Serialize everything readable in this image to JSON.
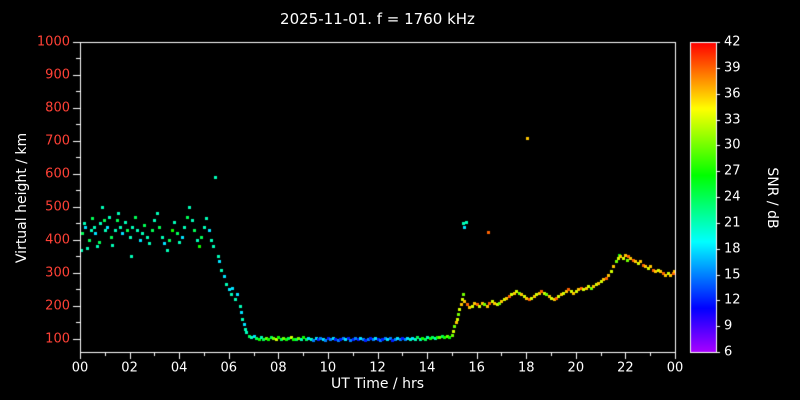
{
  "chart_data": {
    "type": "scatter",
    "title": "2025-11-01. f = 1760 kHz",
    "xlabel": "UT Time / hrs",
    "ylabel": "Virtual height / km",
    "colorbar_label": "SNR / dB",
    "xlim": [
      0,
      24
    ],
    "ylim": [
      60,
      1000
    ],
    "clim": [
      6,
      42
    ],
    "grid": false,
    "legend": "none",
    "colors": {
      "background": "#000000",
      "frame": "#ffffff",
      "title": "#ffffff",
      "x_tick_labels": "#ffffff",
      "y_tick_labels": "#ff4136",
      "colorbar_tick_labels": "#ffffff"
    },
    "x_ticks": {
      "values": [
        0,
        2,
        4,
        6,
        8,
        10,
        12,
        14,
        16,
        18,
        20,
        22,
        24
      ],
      "labels": [
        "00",
        "02",
        "04",
        "06",
        "08",
        "10",
        "12",
        "14",
        "16",
        "18",
        "20",
        "22",
        "00"
      ],
      "minor": [
        1,
        3,
        5,
        7,
        9,
        11,
        13,
        15,
        17,
        19,
        21,
        23
      ]
    },
    "y_ticks": {
      "values": [
        100,
        200,
        300,
        400,
        500,
        600,
        700,
        800,
        900,
        1000
      ],
      "labels": [
        "100",
        "200",
        "300",
        "400",
        "500",
        "600",
        "700",
        "800",
        "900",
        "1000"
      ],
      "minor": [
        150,
        250,
        350,
        450,
        550,
        650,
        750,
        850,
        950
      ]
    },
    "colorbar_ticks": {
      "values": [
        6,
        9,
        12,
        15,
        18,
        21,
        24,
        27,
        30,
        33,
        36,
        39,
        42
      ],
      "labels": [
        "6",
        "9",
        "12",
        "15",
        "18",
        "21",
        "24",
        "27",
        "30",
        "33",
        "36",
        "39",
        "42"
      ]
    },
    "points": [
      [
        0.05,
        370,
        21
      ],
      [
        0.1,
        420,
        24
      ],
      [
        0.15,
        450,
        21
      ],
      [
        0.2,
        440,
        18
      ],
      [
        0.3,
        375,
        21
      ],
      [
        0.35,
        400,
        24
      ],
      [
        0.45,
        430,
        21
      ],
      [
        0.5,
        465,
        24
      ],
      [
        0.55,
        440,
        21
      ],
      [
        0.6,
        420,
        18
      ],
      [
        0.7,
        380,
        21
      ],
      [
        0.75,
        395,
        24
      ],
      [
        0.8,
        450,
        21
      ],
      [
        0.9,
        500,
        21
      ],
      [
        0.95,
        460,
        24
      ],
      [
        1.0,
        430,
        21
      ],
      [
        1.1,
        440,
        18
      ],
      [
        1.15,
        470,
        21
      ],
      [
        1.25,
        410,
        24
      ],
      [
        1.3,
        385,
        21
      ],
      [
        1.4,
        430,
        21
      ],
      [
        1.5,
        460,
        24
      ],
      [
        1.55,
        480,
        21
      ],
      [
        1.6,
        440,
        21
      ],
      [
        1.7,
        420,
        18
      ],
      [
        1.8,
        455,
        21
      ],
      [
        1.9,
        430,
        24
      ],
      [
        2.0,
        410,
        21
      ],
      [
        2.05,
        350,
        21
      ],
      [
        2.1,
        440,
        21
      ],
      [
        2.2,
        470,
        24
      ],
      [
        2.3,
        430,
        21
      ],
      [
        2.4,
        400,
        18
      ],
      [
        2.5,
        420,
        21
      ],
      [
        2.6,
        445,
        24
      ],
      [
        2.7,
        410,
        21
      ],
      [
        2.8,
        390,
        21
      ],
      [
        2.9,
        430,
        24
      ],
      [
        3.0,
        460,
        21
      ],
      [
        3.1,
        480,
        21
      ],
      [
        3.2,
        440,
        24
      ],
      [
        3.3,
        410,
        21
      ],
      [
        3.4,
        390,
        18
      ],
      [
        3.5,
        370,
        21
      ],
      [
        3.6,
        400,
        24
      ],
      [
        3.7,
        430,
        27
      ],
      [
        3.8,
        455,
        21
      ],
      [
        3.9,
        420,
        24
      ],
      [
        4.0,
        395,
        21
      ],
      [
        4.1,
        410,
        18
      ],
      [
        4.2,
        440,
        21
      ],
      [
        4.3,
        470,
        24
      ],
      [
        4.4,
        500,
        21
      ],
      [
        4.5,
        460,
        21
      ],
      [
        4.6,
        430,
        24
      ],
      [
        4.7,
        400,
        21
      ],
      [
        4.8,
        380,
        27
      ],
      [
        4.9,
        410,
        24
      ],
      [
        5.0,
        440,
        21
      ],
      [
        5.1,
        465,
        21
      ],
      [
        5.2,
        430,
        18
      ],
      [
        5.3,
        400,
        21
      ],
      [
        5.35,
        380,
        21
      ],
      [
        5.45,
        590,
        21
      ],
      [
        5.55,
        350,
        21
      ],
      [
        5.6,
        335,
        18
      ],
      [
        5.7,
        310,
        21
      ],
      [
        5.8,
        290,
        18
      ],
      [
        5.9,
        265,
        21
      ],
      [
        6.0,
        250,
        18
      ],
      [
        6.1,
        235,
        21
      ],
      [
        6.15,
        255,
        18
      ],
      [
        6.25,
        220,
        21
      ],
      [
        6.35,
        235,
        18
      ],
      [
        6.45,
        200,
        21
      ],
      [
        6.5,
        180,
        18
      ],
      [
        6.55,
        160,
        21
      ],
      [
        6.6,
        145,
        18
      ],
      [
        6.65,
        130,
        21
      ],
      [
        6.7,
        120,
        21
      ],
      [
        6.8,
        110,
        24
      ],
      [
        6.9,
        105,
        21
      ],
      [
        7.0,
        108,
        18
      ],
      [
        7.1,
        102,
        24
      ],
      [
        7.2,
        100,
        27
      ],
      [
        7.3,
        105,
        21
      ],
      [
        7.4,
        98,
        24
      ],
      [
        7.5,
        103,
        30
      ],
      [
        7.6,
        100,
        27
      ],
      [
        7.7,
        105,
        24
      ],
      [
        7.8,
        102,
        30
      ],
      [
        7.9,
        98,
        33
      ],
      [
        8.0,
        104,
        27
      ],
      [
        8.1,
        100,
        24
      ],
      [
        8.2,
        103,
        30
      ],
      [
        8.3,
        99,
        27
      ],
      [
        8.4,
        102,
        24
      ],
      [
        8.5,
        105,
        33
      ],
      [
        8.6,
        100,
        27
      ],
      [
        8.7,
        98,
        24
      ],
      [
        8.8,
        103,
        30
      ],
      [
        8.9,
        100,
        21
      ],
      [
        9.0,
        104,
        27
      ],
      [
        9.1,
        99,
        24
      ],
      [
        9.2,
        102,
        18
      ],
      [
        9.3,
        100,
        21
      ],
      [
        9.4,
        97,
        15
      ],
      [
        9.5,
        102,
        18
      ],
      [
        9.6,
        99,
        12
      ],
      [
        9.7,
        103,
        15
      ],
      [
        9.8,
        100,
        18
      ],
      [
        9.9,
        96,
        15
      ],
      [
        10.0,
        101,
        12
      ],
      [
        10.1,
        98,
        15
      ],
      [
        10.2,
        102,
        18
      ],
      [
        10.3,
        99,
        12
      ],
      [
        10.4,
        95,
        15
      ],
      [
        10.5,
        100,
        12
      ],
      [
        10.6,
        103,
        15
      ],
      [
        10.7,
        98,
        18
      ],
      [
        10.8,
        101,
        12
      ],
      [
        10.9,
        97,
        15
      ],
      [
        11.0,
        100,
        12
      ],
      [
        11.1,
        102,
        15
      ],
      [
        11.2,
        98,
        12
      ],
      [
        11.3,
        101,
        18
      ],
      [
        11.4,
        99,
        15
      ],
      [
        11.5,
        96,
        12
      ],
      [
        11.6,
        100,
        15
      ],
      [
        11.7,
        103,
        12
      ],
      [
        11.8,
        98,
        15
      ],
      [
        11.9,
        101,
        18
      ],
      [
        12.0,
        99,
        12
      ],
      [
        12.1,
        95,
        15
      ],
      [
        12.2,
        100,
        12
      ],
      [
        12.3,
        102,
        15
      ],
      [
        12.4,
        98,
        18
      ],
      [
        12.5,
        101,
        15
      ],
      [
        12.6,
        97,
        12
      ],
      [
        12.7,
        100,
        15
      ],
      [
        12.8,
        103,
        18
      ],
      [
        12.9,
        99,
        15
      ],
      [
        13.0,
        102,
        12
      ],
      [
        13.1,
        98,
        15
      ],
      [
        13.2,
        101,
        18
      ],
      [
        13.3,
        99,
        21
      ],
      [
        13.4,
        103,
        18
      ],
      [
        13.5,
        100,
        21
      ],
      [
        13.6,
        104,
        24
      ],
      [
        13.7,
        100,
        21
      ],
      [
        13.8,
        103,
        27
      ],
      [
        13.9,
        99,
        24
      ],
      [
        14.0,
        105,
        21
      ],
      [
        14.1,
        102,
        27
      ],
      [
        14.2,
        106,
        24
      ],
      [
        14.3,
        103,
        21
      ],
      [
        14.4,
        107,
        27
      ],
      [
        14.5,
        104,
        30
      ],
      [
        14.6,
        108,
        24
      ],
      [
        14.7,
        105,
        27
      ],
      [
        14.8,
        110,
        30
      ],
      [
        14.9,
        107,
        27
      ],
      [
        15.0,
        112,
        30
      ],
      [
        15.05,
        125,
        33
      ],
      [
        15.1,
        140,
        30
      ],
      [
        15.15,
        150,
        36
      ],
      [
        15.2,
        160,
        33
      ],
      [
        15.25,
        175,
        30
      ],
      [
        15.3,
        190,
        33
      ],
      [
        15.35,
        205,
        36
      ],
      [
        15.4,
        220,
        33
      ],
      [
        15.45,
        235,
        30
      ],
      [
        15.5,
        215,
        36
      ],
      [
        15.45,
        450,
        21
      ],
      [
        15.5,
        440,
        18
      ],
      [
        15.55,
        455,
        21
      ],
      [
        16.45,
        425,
        39
      ],
      [
        18.05,
        710,
        36
      ],
      [
        15.6,
        205,
        39
      ],
      [
        15.7,
        195,
        36
      ],
      [
        15.8,
        200,
        33
      ],
      [
        15.9,
        210,
        36
      ],
      [
        16.0,
        205,
        39
      ],
      [
        16.1,
        200,
        33
      ],
      [
        16.2,
        210,
        36
      ],
      [
        16.3,
        205,
        30
      ],
      [
        16.4,
        200,
        36
      ],
      [
        16.5,
        210,
        39
      ],
      [
        16.6,
        215,
        33
      ],
      [
        16.7,
        210,
        36
      ],
      [
        16.8,
        205,
        33
      ],
      [
        16.9,
        210,
        30
      ],
      [
        17.0,
        215,
        36
      ],
      [
        17.1,
        220,
        33
      ],
      [
        17.2,
        225,
        36
      ],
      [
        17.3,
        230,
        39
      ],
      [
        17.4,
        235,
        33
      ],
      [
        17.5,
        240,
        36
      ],
      [
        17.6,
        245,
        33
      ],
      [
        17.7,
        240,
        30
      ],
      [
        17.8,
        235,
        36
      ],
      [
        17.9,
        230,
        33
      ],
      [
        18.0,
        225,
        36
      ],
      [
        18.1,
        220,
        39
      ],
      [
        18.2,
        225,
        33
      ],
      [
        18.3,
        230,
        36
      ],
      [
        18.4,
        235,
        33
      ],
      [
        18.5,
        240,
        36
      ],
      [
        18.6,
        245,
        39
      ],
      [
        18.7,
        240,
        33
      ],
      [
        18.8,
        235,
        30
      ],
      [
        18.9,
        230,
        36
      ],
      [
        19.0,
        225,
        33
      ],
      [
        19.1,
        220,
        36
      ],
      [
        19.2,
        225,
        39
      ],
      [
        19.3,
        230,
        33
      ],
      [
        19.4,
        235,
        36
      ],
      [
        19.5,
        240,
        33
      ],
      [
        19.6,
        245,
        36
      ],
      [
        19.7,
        250,
        39
      ],
      [
        19.8,
        245,
        33
      ],
      [
        19.9,
        240,
        36
      ],
      [
        20.0,
        245,
        33
      ],
      [
        20.1,
        250,
        36
      ],
      [
        20.2,
        255,
        39
      ],
      [
        20.3,
        250,
        33
      ],
      [
        20.4,
        255,
        36
      ],
      [
        20.5,
        260,
        33
      ],
      [
        20.6,
        255,
        30
      ],
      [
        20.7,
        260,
        36
      ],
      [
        20.8,
        265,
        33
      ],
      [
        20.9,
        270,
        36
      ],
      [
        21.0,
        275,
        33
      ],
      [
        21.1,
        280,
        36
      ],
      [
        21.2,
        285,
        39
      ],
      [
        21.3,
        295,
        36
      ],
      [
        21.4,
        305,
        33
      ],
      [
        21.5,
        320,
        36
      ],
      [
        21.6,
        335,
        30
      ],
      [
        21.7,
        345,
        33
      ],
      [
        21.75,
        355,
        27
      ],
      [
        21.8,
        350,
        36
      ],
      [
        21.9,
        345,
        33
      ],
      [
        22.0,
        355,
        36
      ],
      [
        22.05,
        340,
        30
      ],
      [
        22.1,
        350,
        39
      ],
      [
        22.2,
        345,
        36
      ],
      [
        22.3,
        340,
        39
      ],
      [
        22.4,
        335,
        36
      ],
      [
        22.5,
        330,
        33
      ],
      [
        22.6,
        335,
        36
      ],
      [
        22.7,
        325,
        39
      ],
      [
        22.8,
        320,
        36
      ],
      [
        22.9,
        315,
        33
      ],
      [
        23.0,
        320,
        36
      ],
      [
        23.1,
        310,
        39
      ],
      [
        23.2,
        305,
        36
      ],
      [
        23.3,
        310,
        33
      ],
      [
        23.4,
        305,
        36
      ],
      [
        23.5,
        300,
        39
      ],
      [
        23.6,
        295,
        36
      ],
      [
        23.7,
        300,
        33
      ],
      [
        23.8,
        295,
        36
      ],
      [
        23.9,
        300,
        39
      ],
      [
        23.95,
        305,
        36
      ]
    ]
  }
}
